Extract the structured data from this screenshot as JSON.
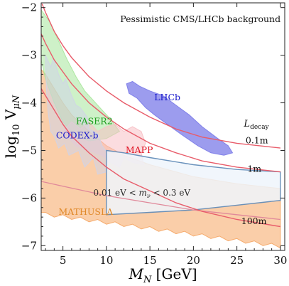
{
  "chart_data": {
    "type": "area",
    "title": "Pessimistic CMS/LHCb background",
    "xlabel": "M_N [GeV]",
    "ylabel": "log10 V_μN",
    "xlim": [
      2.5,
      30.5
    ],
    "ylim": [
      -7.1,
      -1.9
    ],
    "xticks": [
      5,
      10,
      15,
      20,
      25,
      30
    ],
    "yticks": [
      -2,
      -3,
      -4,
      -5,
      -6,
      -7
    ],
    "grid": false,
    "legend": "none",
    "regions": [
      {
        "name": "MATHUSLA",
        "color": "#f5a563",
        "label_color": "#e0892a",
        "label_pos": [
          4.5,
          -6.35
        ],
        "polygon": [
          [
            2.5,
            -3.3
          ],
          [
            3,
            -3.4
          ],
          [
            4,
            -3.7
          ],
          [
            5,
            -4.0
          ],
          [
            6,
            -4.25
          ],
          [
            8,
            -4.6
          ],
          [
            10,
            -4.9
          ],
          [
            12,
            -5.1
          ],
          [
            15,
            -5.3
          ],
          [
            20,
            -5.55
          ],
          [
            25,
            -5.7
          ],
          [
            30,
            -5.8
          ],
          [
            30,
            -7.05
          ],
          [
            29,
            -6.95
          ],
          [
            28,
            -7.0
          ],
          [
            27,
            -6.9
          ],
          [
            26,
            -6.95
          ],
          [
            25,
            -6.85
          ],
          [
            24,
            -6.9
          ],
          [
            23,
            -6.8
          ],
          [
            22,
            -6.85
          ],
          [
            21,
            -6.75
          ],
          [
            20,
            -6.8
          ],
          [
            19,
            -6.7
          ],
          [
            18,
            -6.75
          ],
          [
            17,
            -6.65
          ],
          [
            16,
            -6.7
          ],
          [
            15,
            -6.6
          ],
          [
            14,
            -6.65
          ],
          [
            13,
            -6.55
          ],
          [
            12,
            -6.6
          ],
          [
            11,
            -6.5
          ],
          [
            10,
            -6.55
          ],
          [
            9,
            -6.45
          ],
          [
            8,
            -6.5
          ],
          [
            7,
            -6.4
          ],
          [
            6,
            -6.45
          ],
          [
            5,
            -6.35
          ],
          [
            4,
            -6.4
          ],
          [
            3,
            -6.3
          ],
          [
            2.5,
            -6.3
          ]
        ]
      },
      {
        "name": "FASER2",
        "color": "#a6e59a",
        "label_color": "#1e9e1e",
        "label_pos": [
          6.5,
          -4.45
        ],
        "polygon": [
          [
            2.5,
            -2.05
          ],
          [
            3.5,
            -2.3
          ],
          [
            4.5,
            -2.7
          ],
          [
            5.5,
            -3.1
          ],
          [
            6.5,
            -3.45
          ],
          [
            7.5,
            -3.75
          ],
          [
            9,
            -4.05
          ],
          [
            10.5,
            -4.35
          ],
          [
            11.5,
            -4.6
          ],
          [
            10,
            -4.75
          ],
          [
            8,
            -4.8
          ],
          [
            6.5,
            -4.7
          ],
          [
            5,
            -4.4
          ],
          [
            4,
            -4.0
          ],
          [
            3,
            -3.5
          ],
          [
            2.5,
            -3.1
          ]
        ]
      },
      {
        "name": "MAPP",
        "color": "#f7c0c5",
        "label_color": "#e01020",
        "label_pos": [
          12.2,
          -5.05
        ],
        "polygon": [
          [
            5,
            -4.6
          ],
          [
            6,
            -4.4
          ],
          [
            7,
            -4.55
          ],
          [
            8,
            -4.4
          ],
          [
            9,
            -4.6
          ],
          [
            10,
            -4.5
          ],
          [
            11,
            -4.45
          ],
          [
            12,
            -4.6
          ],
          [
            13,
            -4.5
          ],
          [
            14,
            -4.6
          ],
          [
            14.5,
            -4.85
          ],
          [
            14,
            -5.05
          ],
          [
            14.3,
            -5.3
          ],
          [
            13,
            -5.25
          ],
          [
            12,
            -5.15
          ],
          [
            11.5,
            -5.35
          ],
          [
            10.5,
            -5.25
          ],
          [
            9.5,
            -5.1
          ],
          [
            8,
            -5.0
          ],
          [
            6.5,
            -4.9
          ]
        ]
      },
      {
        "name": "CODEX-b",
        "color": "#cfd3e8",
        "label_color": "#1a1acc",
        "label_pos": [
          4.2,
          -4.75
        ],
        "polygon": [
          [
            3,
            -3.0
          ],
          [
            3.6,
            -3.25
          ],
          [
            3.9,
            -3.05
          ],
          [
            4.5,
            -3.4
          ],
          [
            5,
            -3.6
          ],
          [
            5.3,
            -3.5
          ],
          [
            6,
            -3.85
          ],
          [
            6.5,
            -4.05
          ],
          [
            7,
            -4.1
          ],
          [
            7.8,
            -4.3
          ],
          [
            8,
            -4.55
          ],
          [
            9,
            -4.65
          ],
          [
            9.5,
            -4.9
          ],
          [
            10.3,
            -5.1
          ],
          [
            10,
            -5.45
          ],
          [
            9,
            -5.5
          ],
          [
            8.5,
            -5.15
          ],
          [
            7.5,
            -5.35
          ],
          [
            6.8,
            -5.0
          ],
          [
            5.7,
            -5.1
          ],
          [
            5.2,
            -4.85
          ],
          [
            4.5,
            -4.95
          ],
          [
            4,
            -4.7
          ],
          [
            3.6,
            -4.6
          ],
          [
            3.3,
            -4.2
          ],
          [
            3.1,
            -3.7
          ]
        ]
      },
      {
        "name": "LHCb",
        "color": "#7b7be8",
        "label_color": "#1a1acc",
        "label_pos": [
          15.5,
          -3.95
        ],
        "polygon": [
          [
            12.3,
            -3.6
          ],
          [
            13,
            -3.55
          ],
          [
            13.8,
            -3.65
          ],
          [
            15,
            -3.75
          ],
          [
            16.5,
            -3.85
          ],
          [
            18,
            -4.05
          ],
          [
            19.5,
            -4.25
          ],
          [
            21,
            -4.5
          ],
          [
            22.8,
            -4.75
          ],
          [
            24,
            -4.9
          ],
          [
            24.5,
            -5.05
          ],
          [
            23.5,
            -5.1
          ],
          [
            22,
            -5.05
          ],
          [
            20.5,
            -4.9
          ],
          [
            18.5,
            -4.65
          ],
          [
            17,
            -4.45
          ],
          [
            15.5,
            -4.25
          ],
          [
            14.5,
            -4.1
          ],
          [
            13.5,
            -3.9
          ],
          [
            12.6,
            -3.8
          ]
        ]
      },
      {
        "name": "0.01 eV < m_ν < 0.3 eV",
        "color": "#eef4fb",
        "edge": "#5a86b5",
        "label_color": "#2a2a2a",
        "label_pos": [
          8.5,
          -5.95
        ],
        "polygon": [
          [
            10,
            -5.0
          ],
          [
            12,
            -5.05
          ],
          [
            15,
            -5.15
          ],
          [
            20,
            -5.3
          ],
          [
            25,
            -5.4
          ],
          [
            30,
            -5.45
          ],
          [
            30,
            -6.05
          ],
          [
            25,
            -6.15
          ],
          [
            20,
            -6.25
          ],
          [
            15,
            -6.3
          ],
          [
            10,
            -6.35
          ]
        ]
      }
    ],
    "lines": [
      {
        "name": "",
        "color": "#e0889a",
        "points": [
          [
            2.5,
            -5.65
          ],
          [
            5,
            -5.75
          ],
          [
            10,
            -5.95
          ],
          [
            15,
            -6.1
          ],
          [
            20,
            -6.25
          ],
          [
            25,
            -6.35
          ],
          [
            30,
            -6.45
          ]
        ]
      }
    ],
    "decay_curves": {
      "title": "L_decay",
      "color": "#e85c6a",
      "curves": [
        {
          "label": "0.1m",
          "label_pos": [
            26,
            -4.85
          ],
          "points": [
            [
              2.6,
              -1.92
            ],
            [
              3,
              -2.1
            ],
            [
              4,
              -2.5
            ],
            [
              5,
              -2.8
            ],
            [
              6,
              -3.05
            ],
            [
              8,
              -3.45
            ],
            [
              10,
              -3.75
            ],
            [
              12,
              -4.0
            ],
            [
              15,
              -4.3
            ],
            [
              18,
              -4.55
            ],
            [
              21,
              -4.72
            ],
            [
              25,
              -4.85
            ],
            [
              30,
              -4.95
            ]
          ]
        },
        {
          "label": "1m",
          "label_pos": [
            26.2,
            -5.45
          ],
          "points": [
            [
              2.5,
              -2.55
            ],
            [
              3,
              -2.75
            ],
            [
              4,
              -3.1
            ],
            [
              5,
              -3.35
            ],
            [
              6,
              -3.6
            ],
            [
              8,
              -4.0
            ],
            [
              10,
              -4.3
            ],
            [
              12,
              -4.55
            ],
            [
              15,
              -4.85
            ],
            [
              18,
              -5.05
            ],
            [
              21,
              -5.22
            ],
            [
              25,
              -5.35
            ],
            [
              30,
              -5.45
            ]
          ]
        },
        {
          "label": "100m",
          "label_pos": [
            25.5,
            -6.55
          ],
          "points": [
            [
              2.5,
              -3.7
            ],
            [
              3,
              -3.85
            ],
            [
              4,
              -4.15
            ],
            [
              5,
              -4.45
            ],
            [
              6,
              -4.7
            ],
            [
              8,
              -5.05
            ],
            [
              10,
              -5.35
            ],
            [
              12,
              -5.6
            ],
            [
              15,
              -5.85
            ],
            [
              18,
              -6.1
            ],
            [
              21,
              -6.28
            ],
            [
              25,
              -6.45
            ],
            [
              30,
              -6.6
            ]
          ]
        }
      ]
    }
  }
}
